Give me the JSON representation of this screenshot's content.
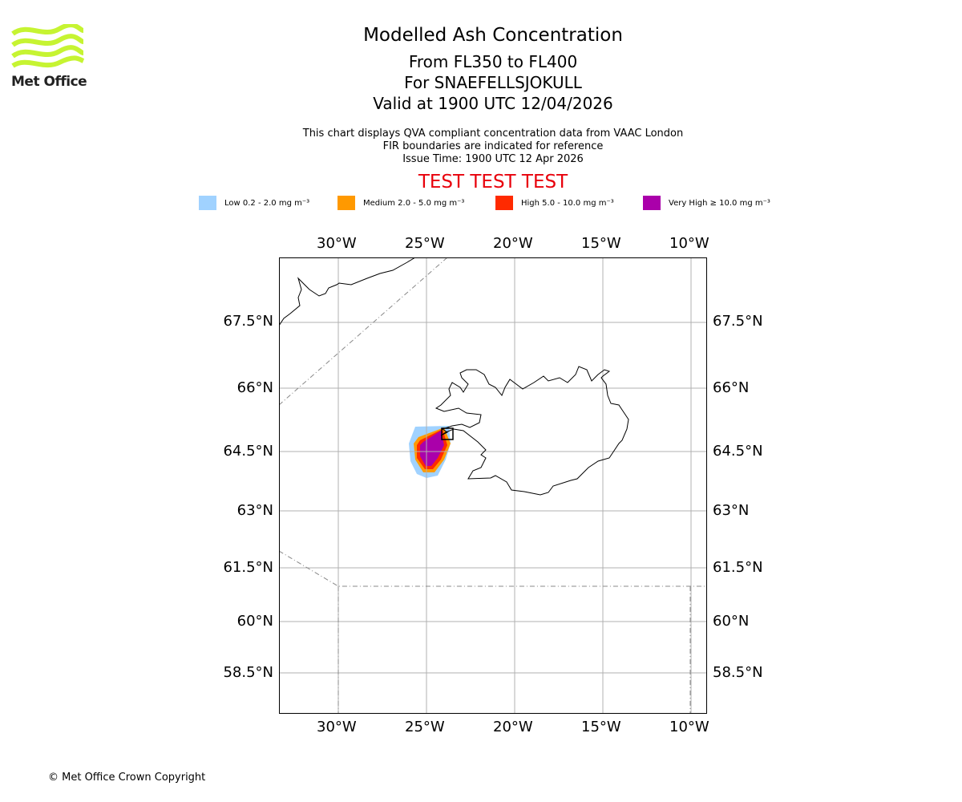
{
  "logo": {
    "text": "Met Office",
    "color": "#c6f432"
  },
  "title": "Modelled Ash Concentration",
  "subtitle_lines": [
    "From FL350 to FL400",
    "For SNAEFELLSJOKULL",
    "Valid at 1900 UTC 12/04/2026"
  ],
  "info_lines": [
    "This chart displays QVA compliant concentration data from VAAC London",
    "FIR boundaries are indicated for reference",
    "Issue Time: 1900 UTC 12 Apr 2026"
  ],
  "banner": "TEST TEST TEST",
  "legend": [
    {
      "label": "Low 0.2 - 2.0 mg m⁻³",
      "color": "#a0d2ff"
    },
    {
      "label": "Medium 2.0 - 5.0 mg m⁻³",
      "color": "#ff9900"
    },
    {
      "label": "High 5.0 - 10.0 mg m⁻³",
      "color": "#ff2a00"
    },
    {
      "label": "Very High ≥ 10.0 mg m⁻³",
      "color": "#aa00aa"
    }
  ],
  "lon_ticks": [
    "30°W",
    "25°W",
    "20°W",
    "15°W",
    "10°W"
  ],
  "lat_ticks": [
    "67.5°N",
    "66°N",
    "64.5°N",
    "63°N",
    "61.5°N",
    "60°N",
    "58.5°N"
  ],
  "copyright": "© Met Office Crown Copyright"
}
